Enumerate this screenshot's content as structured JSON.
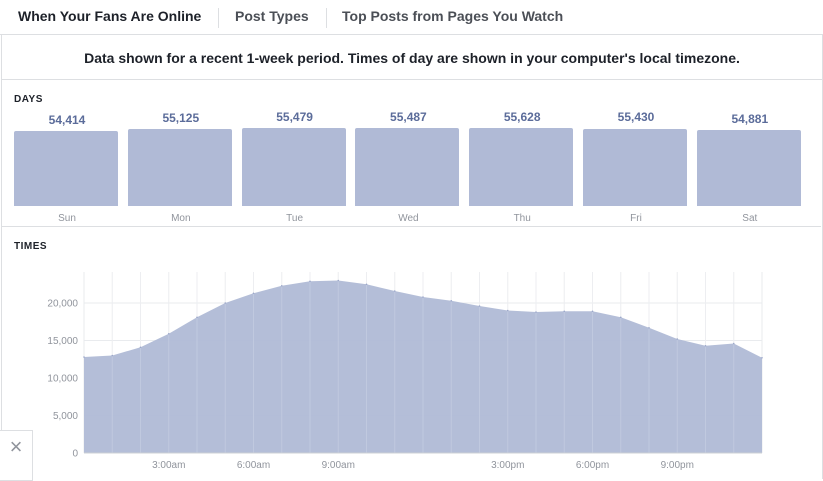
{
  "tabs": [
    {
      "label": "When Your Fans Are Online",
      "active": true
    },
    {
      "label": "Post Types",
      "active": false
    },
    {
      "label": "Top Posts from Pages You Watch",
      "active": false
    }
  ],
  "notice": "Data shown for a recent 1-week period. Times of day are shown in your computer's local timezone.",
  "days_section": {
    "label": "DAYS"
  },
  "times_section": {
    "label": "TIMES"
  },
  "close_icon": "close-icon",
  "colors": {
    "bar": "#b0bad6",
    "value_text": "#5b6c9a",
    "area": "#b0bad6",
    "grid": "#e9ebee"
  },
  "chart_data": [
    {
      "type": "bar",
      "categories": [
        "Sun",
        "Mon",
        "Tue",
        "Wed",
        "Thu",
        "Fri",
        "Sat"
      ],
      "values": [
        54414,
        55125,
        55479,
        55487,
        55628,
        55430,
        54881
      ],
      "value_labels": [
        "54,414",
        "55,125",
        "55,479",
        "55,487",
        "55,628",
        "55,430",
        "54,881"
      ]
    },
    {
      "type": "area",
      "x": [
        0,
        1,
        2,
        3,
        4,
        5,
        6,
        7,
        8,
        9,
        10,
        11,
        12,
        13,
        14,
        15,
        16,
        17,
        18,
        19,
        20,
        21,
        22,
        23,
        24
      ],
      "y": [
        12800,
        13000,
        14100,
        15900,
        18100,
        20000,
        21300,
        22300,
        22900,
        23000,
        22500,
        21600,
        20800,
        20300,
        19600,
        19000,
        18800,
        18900,
        18900,
        18100,
        16700,
        15200,
        14300,
        14600,
        12700
      ],
      "xticks": [
        {
          "x": 3,
          "label": "3:00am"
        },
        {
          "x": 6,
          "label": "6:00am"
        },
        {
          "x": 9,
          "label": "9:00am"
        },
        {
          "x": 15,
          "label": "3:00pm"
        },
        {
          "x": 18,
          "label": "6:00pm"
        },
        {
          "x": 21,
          "label": "9:00pm"
        }
      ],
      "yticks": [
        {
          "y": 0,
          "label": "0"
        },
        {
          "y": 5000,
          "label": "5,000"
        },
        {
          "y": 10000,
          "label": "10,000"
        },
        {
          "y": 15000,
          "label": "15,000"
        },
        {
          "y": 20000,
          "label": "20,000"
        }
      ],
      "xlim": [
        0,
        24
      ],
      "ylim": [
        0,
        24500
      ],
      "grid": true
    }
  ]
}
